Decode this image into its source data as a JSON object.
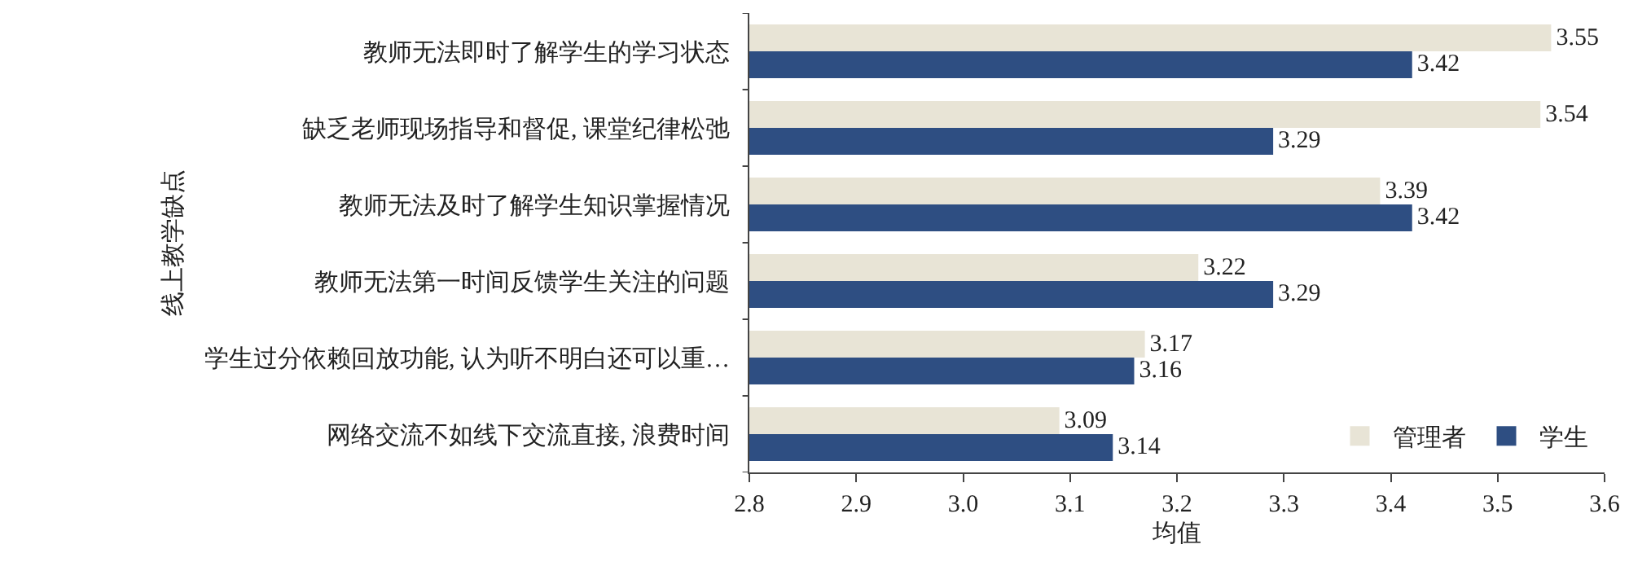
{
  "chart_data": {
    "type": "bar",
    "orientation": "horizontal",
    "xlabel": "均值",
    "ylabel": "线上教学缺点",
    "categories": [
      "教师无法即时了解学生的学习状态",
      "缺乏老师现场指导和督促, 课堂纪律松弛",
      "教师无法及时了解学生知识掌握情况",
      "教师无法第一时间反馈学生关注的问题",
      "学生过分依赖回放功能, 认为听不明白还可以重…",
      "网络交流不如线下交流直接, 浪费时间"
    ],
    "series": [
      {
        "name": "管理者",
        "color": "#e8e4d6",
        "values": [
          3.55,
          3.54,
          3.39,
          3.22,
          3.17,
          3.09
        ]
      },
      {
        "name": "学生",
        "color": "#2e4e82",
        "values": [
          3.42,
          3.29,
          3.42,
          3.29,
          3.16,
          3.14
        ]
      }
    ],
    "xlim": [
      2.8,
      3.6
    ],
    "xticks": [
      {
        "value": 2.8,
        "label": "2.8"
      },
      {
        "value": 2.9,
        "label": "2.9"
      },
      {
        "value": 3,
        "label": "3.0"
      },
      {
        "value": 3.1,
        "label": "3.1"
      },
      {
        "value": 3.2,
        "label": "3.2"
      },
      {
        "value": 3.3,
        "label": "3.3"
      },
      {
        "value": 3.4,
        "label": "3.4"
      },
      {
        "value": 3.5,
        "label": "3.5"
      },
      {
        "value": 3.6,
        "label": "3.6"
      }
    ],
    "data_labels": true,
    "grid": false,
    "legend": "bottom right"
  }
}
